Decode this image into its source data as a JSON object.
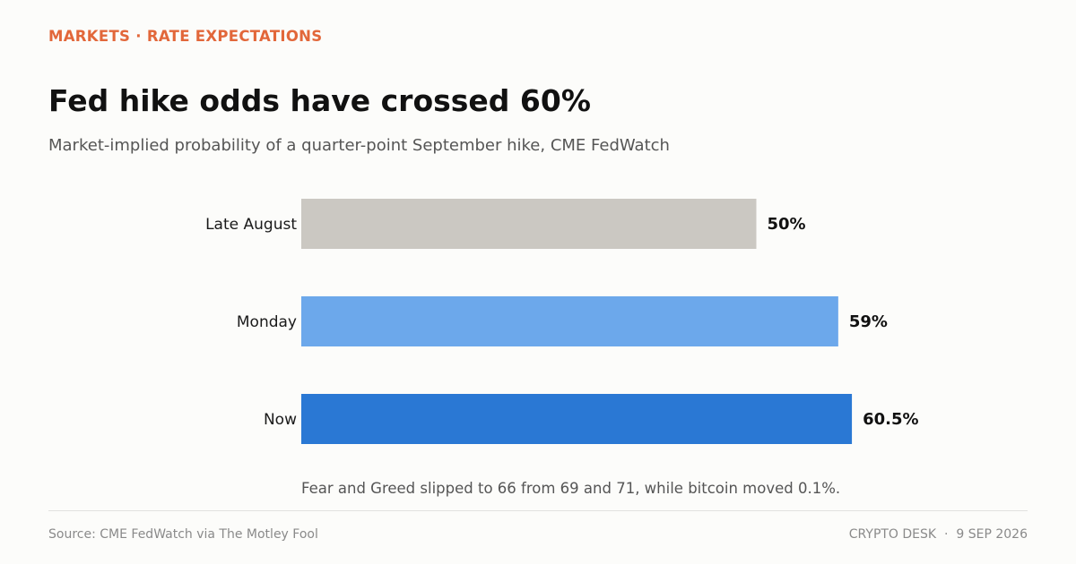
{
  "header": {
    "kicker": "MARKETS · RATE EXPECTATIONS",
    "title": "Fed hike odds have crossed 60%",
    "subtitle": "Market-implied probability of a quarter-point September hike, CME FedWatch"
  },
  "chart_data": {
    "type": "bar",
    "orientation": "horizontal",
    "categories": [
      "Late August",
      "Monday",
      "Now"
    ],
    "values": [
      50,
      59,
      60.5
    ],
    "value_labels": [
      "50%",
      "59%",
      "60.5%"
    ],
    "colors": [
      "#cbc8c2",
      "#6ca8eb",
      "#2a78d4"
    ],
    "xlim": [
      0,
      100
    ],
    "grid": false
  },
  "note": "Fear and Greed slipped to 66 from 69 and 71, while bitcoin moved 0.1%.",
  "footer": {
    "source": "Source: CME FedWatch via The Motley Fool",
    "desk": "CRYPTO DESK",
    "separator": "·",
    "date": "9 SEP 2026"
  }
}
